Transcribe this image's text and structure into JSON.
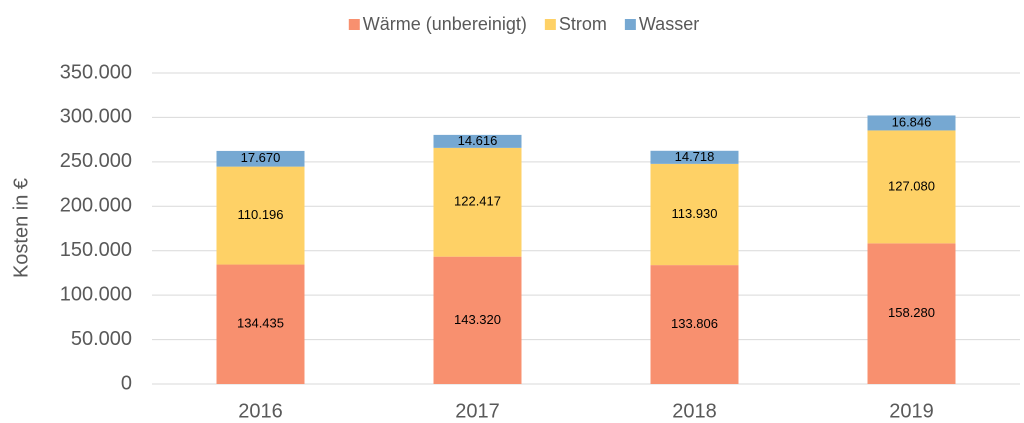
{
  "chart_data": {
    "type": "bar",
    "stacked": true,
    "y_label": "Kosten in €",
    "categories": [
      "2016",
      "2017",
      "2018",
      "2019"
    ],
    "series": [
      {
        "name": "Wärme (unbereinigt)",
        "color": "#f8906f",
        "values": [
          134435,
          143320,
          133806,
          158280
        ],
        "value_labels": [
          "134.435",
          "143.320",
          "133.806",
          "158.280"
        ]
      },
      {
        "name": "Strom",
        "color": "#fed166",
        "values": [
          110196,
          122417,
          113930,
          127080
        ],
        "value_labels": [
          "110.196",
          "122.417",
          "113.930",
          "127.080"
        ]
      },
      {
        "name": "Wasser",
        "color": "#76a8d2",
        "values": [
          17670,
          14616,
          14718,
          16846
        ],
        "value_labels": [
          "17.670",
          "14.616",
          "14.718",
          "16.846"
        ]
      }
    ],
    "ylim": [
      0,
      350000
    ],
    "yticks": [
      0,
      {
        "value": 50000,
        "label": "50.000"
      },
      {
        "value": 100000,
        "label": "100.000"
      },
      {
        "value": 150000,
        "label": "150.000"
      },
      {
        "value": 200000,
        "label": "200.000"
      },
      {
        "value": 250000,
        "label": "250.000"
      },
      {
        "value": 300000,
        "label": "300.000"
      },
      {
        "value": 350000,
        "label": "350.000"
      }
    ],
    "grid": true,
    "legend": "top"
  }
}
